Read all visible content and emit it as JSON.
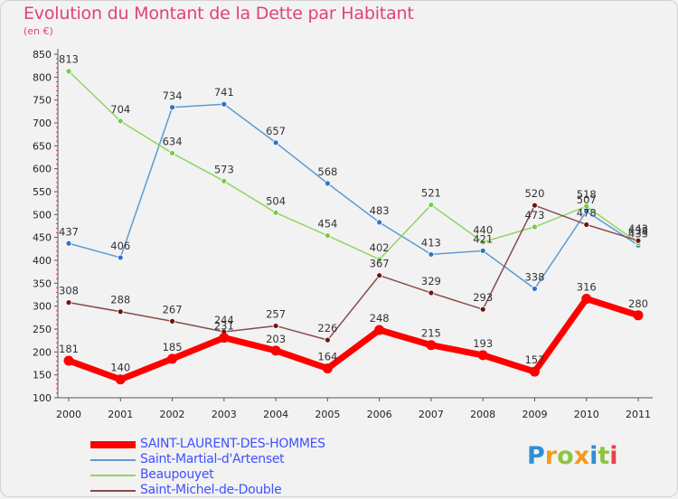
{
  "title": "Evolution du Montant de la Dette par Habitant",
  "unit": "(en €)",
  "logo": {
    "text": "Proxiti",
    "letter_colors": [
      "#2f8fd6",
      "#f59a1d",
      "#8cc63f",
      "#f59a1d",
      "#2f8fd6",
      "#8cc63f",
      "#e8424b"
    ]
  },
  "chart_data": {
    "type": "line",
    "title": "Evolution du Montant de la Dette par Habitant",
    "ylabel": "(en €)",
    "xlabel": "",
    "x": [
      "2000",
      "2001",
      "2002",
      "2003",
      "2004",
      "2005",
      "2006",
      "2007",
      "2008",
      "2009",
      "2010",
      "2011"
    ],
    "ylim": [
      100,
      850
    ],
    "yticks": [
      100,
      150,
      200,
      250,
      300,
      350,
      400,
      450,
      500,
      550,
      600,
      650,
      700,
      750,
      800,
      850
    ],
    "grid": false,
    "legend_position": "bottom-left",
    "series": [
      {
        "name": "SAINT-LAURENT-DES-HOMMES",
        "color": "#ff0000",
        "marker": "#ff0000",
        "width": 7,
        "values": [
          181,
          140,
          185,
          231,
          203,
          164,
          248,
          215,
          193,
          157,
          316,
          280
        ]
      },
      {
        "name": "Saint-Martial-d'Artenset",
        "color": "#5b9bd5",
        "marker": "#2f75c4",
        "width": 1.5,
        "values": [
          437,
          406,
          734,
          741,
          657,
          568,
          483,
          413,
          421,
          338,
          507,
          433
        ]
      },
      {
        "name": "Beaupouyet",
        "color": "#8fd563",
        "marker": "#7ac943",
        "width": 1.5,
        "values": [
          813,
          704,
          634,
          573,
          504,
          454,
          402,
          521,
          440,
          473,
          518,
          438
        ]
      },
      {
        "name": "Saint-Michel-de-Double",
        "color": "#8a4a4a",
        "marker": "#6b1616",
        "width": 1.5,
        "values": [
          308,
          288,
          267,
          244,
          257,
          226,
          367,
          329,
          293,
          520,
          478,
          443
        ]
      }
    ]
  }
}
